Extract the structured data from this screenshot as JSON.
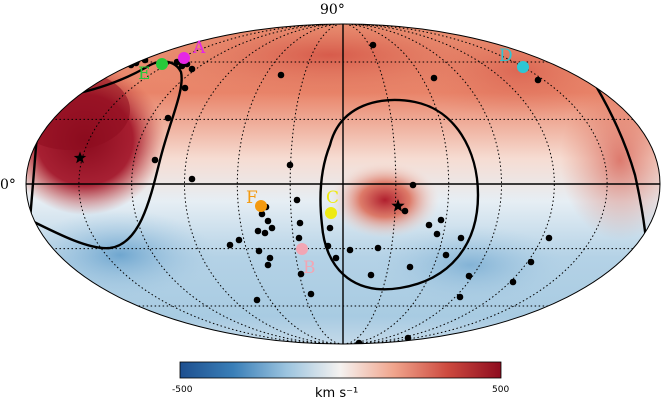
{
  "map": {
    "projection": "mollweide",
    "lat_label_top": "90°",
    "lat_label_equator": "0°",
    "colors": {
      "deep_red": "#8e0c1f",
      "red": "#cd4a3f",
      "light_red": "#f2b09a",
      "white": "#f7f4f2",
      "light_blue": "#b8d5e8",
      "blue": "#3a7fb8",
      "deep_blue": "#1d4f8f"
    }
  },
  "points": [
    {
      "label": "A",
      "color": "#e526e5"
    },
    {
      "label": "E",
      "color": "#27c93a"
    },
    {
      "label": "D",
      "color": "#2ec6d4"
    },
    {
      "label": "F",
      "color": "#f39a10"
    },
    {
      "label": "C",
      "color": "#eeea12"
    },
    {
      "label": "B",
      "color": "#f2a6b4"
    }
  ],
  "colorbar": {
    "min_label": "-500",
    "max_label": "500",
    "unit": "km s⁻¹",
    "colors": [
      "#1d4f8f",
      "#3a7fb8",
      "#9cc4df",
      "#f5f2f0",
      "#f0a48c",
      "#cd4a3f",
      "#8e0c1f"
    ]
  }
}
